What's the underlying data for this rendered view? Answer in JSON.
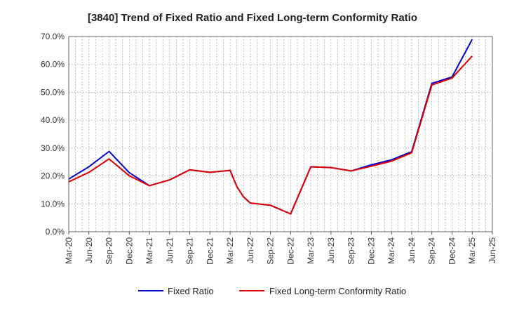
{
  "chart_data": {
    "type": "line",
    "title": "[3840]  Trend of Fixed Ratio and Fixed Long-term Conformity Ratio",
    "xlabel": "",
    "ylabel": "",
    "ylim": [
      0,
      70
    ],
    "y_ticks": [
      "0.0%",
      "10.0%",
      "20.0%",
      "30.0%",
      "40.0%",
      "50.0%",
      "60.0%",
      "70.0%"
    ],
    "x_ticks": [
      "Mar-20",
      "Jun-20",
      "Sep-20",
      "Dec-20",
      "Mar-21",
      "Jun-21",
      "Sep-21",
      "Dec-21",
      "Mar-22",
      "Jun-22",
      "Sep-22",
      "Dec-22",
      "Mar-23",
      "Jun-23",
      "Sep-23",
      "Dec-23",
      "Mar-24",
      "Jun-24",
      "Sep-24",
      "Dec-24",
      "Mar-25",
      "Jun-25"
    ],
    "grid": true,
    "legend_position": "bottom",
    "series": [
      {
        "name": "Fixed Ratio",
        "color": "#0000cc",
        "points": [
          [
            "Mar-20",
            18.9
          ],
          [
            "Jun-20",
            23.3
          ],
          [
            "Sep-20",
            28.8
          ],
          [
            "Dec-20",
            21.2
          ],
          [
            "Mar-21",
            16.5
          ],
          [
            "Jun-21",
            18.6
          ],
          [
            "Sep-21",
            22.2
          ],
          [
            "Dec-21",
            21.3
          ],
          [
            "Mar-22",
            22.0
          ],
          [
            "Apr-22",
            16.2
          ],
          [
            "May-22",
            12.5
          ],
          [
            "Jun-22",
            10.3
          ],
          [
            "Sep-22",
            9.5
          ],
          [
            "Dec-22",
            6.4
          ],
          [
            "Mar-23",
            23.3
          ],
          [
            "Jun-23",
            23.0
          ],
          [
            "Sep-23",
            21.8
          ],
          [
            "Dec-23",
            24.0
          ],
          [
            "Mar-24",
            25.8
          ],
          [
            "Jun-24",
            28.7
          ],
          [
            "Sep-24",
            53.2
          ],
          [
            "Dec-24",
            55.5
          ],
          [
            "Mar-25",
            69.0
          ]
        ]
      },
      {
        "name": "Fixed Long-term Conformity Ratio",
        "color": "#dd0000",
        "points": [
          [
            "Mar-20",
            17.9
          ],
          [
            "Jun-20",
            21.3
          ],
          [
            "Sep-20",
            26.1
          ],
          [
            "Dec-20",
            20.1
          ],
          [
            "Mar-21",
            16.5
          ],
          [
            "Jun-21",
            18.6
          ],
          [
            "Sep-21",
            22.2
          ],
          [
            "Dec-21",
            21.3
          ],
          [
            "Mar-22",
            22.0
          ],
          [
            "Apr-22",
            16.2
          ],
          [
            "May-22",
            12.5
          ],
          [
            "Jun-22",
            10.3
          ],
          [
            "Sep-22",
            9.5
          ],
          [
            "Dec-22",
            6.4
          ],
          [
            "Mar-23",
            23.3
          ],
          [
            "Jun-23",
            23.0
          ],
          [
            "Sep-23",
            21.8
          ],
          [
            "Dec-23",
            23.5
          ],
          [
            "Mar-24",
            25.3
          ],
          [
            "Jun-24",
            28.3
          ],
          [
            "Sep-24",
            52.6
          ],
          [
            "Dec-24",
            55.1
          ],
          [
            "Mar-25",
            63.0
          ]
        ]
      }
    ]
  }
}
